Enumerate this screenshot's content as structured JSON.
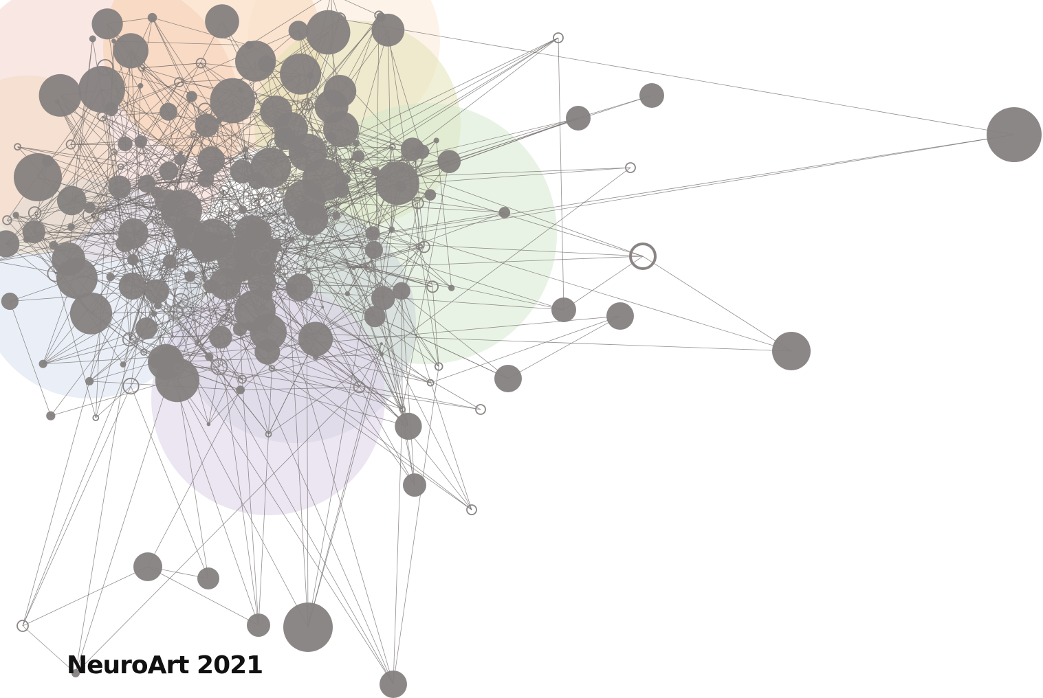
{
  "title": "NeuroArt 2021"
}
